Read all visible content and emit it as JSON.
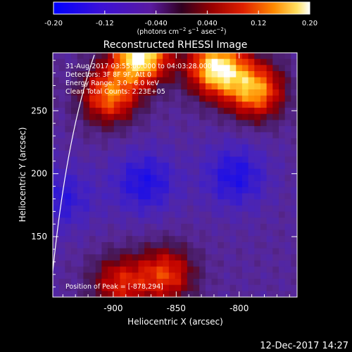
{
  "chart_data": {
    "type": "heatmap",
    "title": "Reconstructed RHESSI Image",
    "xlabel": "Heliocentric X (arcsec)",
    "ylabel": "Heliocentric Y (arcsec)",
    "xlim": [
      -948,
      -754
    ],
    "ylim": [
      102,
      296
    ],
    "x_ticks": [
      "-900",
      "-850",
      "-800"
    ],
    "x_tick_values": [
      -900,
      -850,
      -800
    ],
    "y_ticks": [
      "150",
      "200",
      "250"
    ],
    "y_tick_values": [
      150,
      200,
      250
    ],
    "colorbar": {
      "range": [
        -0.2,
        0.2
      ],
      "tick_labels": [
        "-0.20",
        "-0.12",
        "-0.040",
        "0.040",
        "0.12",
        "0.20"
      ],
      "tick_values": [
        -0.2,
        -0.12,
        -0.04,
        0.04,
        0.12,
        0.2
      ],
      "label": "(photons cm-2 s-1 asec-2)"
    },
    "sources": [
      {
        "x": -878,
        "y": 294,
        "peak": 0.2
      },
      {
        "x": -818,
        "y": 284,
        "peak": 0.19
      },
      {
        "x": -787,
        "y": 266,
        "peak": 0.14
      },
      {
        "x": -903,
        "y": 262,
        "peak": 0.12
      },
      {
        "x": -858,
        "y": 120,
        "peak": 0.09
      },
      {
        "x": -895,
        "y": 113,
        "peak": 0.07
      }
    ],
    "depressions": [
      {
        "x": -875,
        "y": 193,
        "depth": -0.15
      },
      {
        "x": -803,
        "y": 198,
        "depth": -0.15
      },
      {
        "x": -940,
        "y": 180,
        "depth": -0.13
      }
    ],
    "limb_visible": true
  },
  "info": {
    "time_range": "31-Aug-2017 03:55:00.000 to 04:03:28.000",
    "detectors": "Detectors: 3F 8F 9F, Att 0",
    "energy_range": "Energy Range: 3.0 - 6.0 keV",
    "clean_counts": "Clean     Total Counts: 2.23E+05",
    "peak_position": "Position of Peak = [-878,294]"
  },
  "footer": {
    "date": "12-Dec-2017 14:27"
  }
}
